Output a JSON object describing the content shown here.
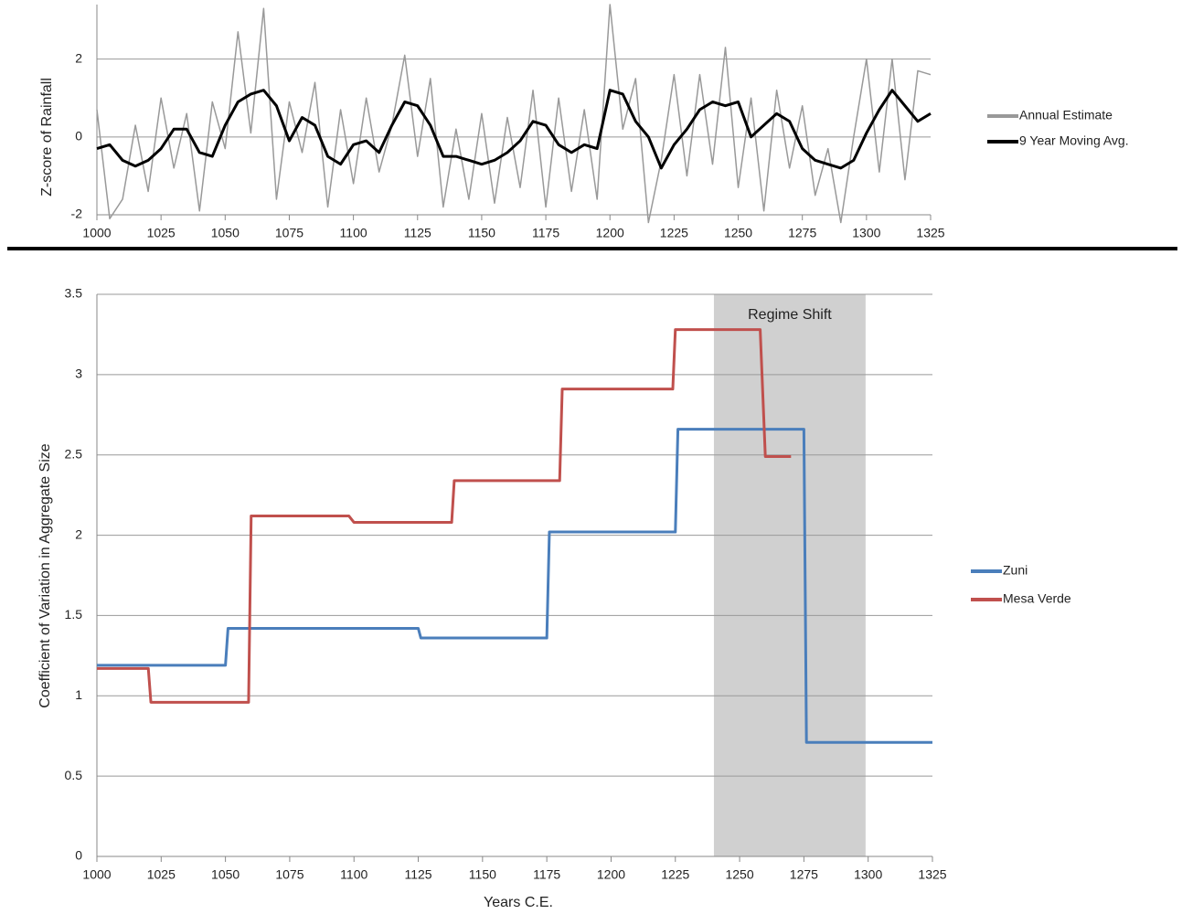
{
  "chart_data": [
    {
      "type": "line",
      "y_label": "Z-score  of Rainfall",
      "x": [
        1000,
        1005,
        1010,
        1015,
        1020,
        1025,
        1030,
        1035,
        1040,
        1045,
        1050,
        1055,
        1060,
        1065,
        1070,
        1075,
        1080,
        1085,
        1090,
        1095,
        1100,
        1105,
        1110,
        1115,
        1120,
        1125,
        1130,
        1135,
        1140,
        1145,
        1150,
        1155,
        1160,
        1165,
        1170,
        1175,
        1180,
        1185,
        1190,
        1195,
        1200,
        1205,
        1210,
        1215,
        1220,
        1225,
        1230,
        1235,
        1240,
        1245,
        1250,
        1255,
        1260,
        1265,
        1270,
        1275,
        1280,
        1285,
        1290,
        1295,
        1300,
        1305,
        1310,
        1315,
        1320,
        1325
      ],
      "series": [
        {
          "name": "Annual Estimate",
          "color": "#999999",
          "width": 1.5,
          "values": [
            0.7,
            -2.1,
            -1.6,
            0.3,
            -1.4,
            1.0,
            -0.8,
            0.6,
            -1.9,
            0.9,
            -0.3,
            2.7,
            0.1,
            3.3,
            -1.6,
            0.9,
            -0.4,
            1.4,
            -1.8,
            0.7,
            -1.2,
            1.0,
            -0.9,
            0.3,
            2.1,
            -0.5,
            1.5,
            -1.8,
            0.2,
            -1.6,
            0.6,
            -1.7,
            0.5,
            -1.3,
            1.2,
            -1.8,
            1.0,
            -1.4,
            0.7,
            -1.6,
            3.4,
            0.2,
            1.5,
            -2.2,
            -0.6,
            1.6,
            -1.0,
            1.6,
            -0.7,
            2.3,
            -1.3,
            1.0,
            -1.9,
            1.2,
            -0.8,
            0.8,
            -1.5,
            -0.3,
            -2.2,
            0.0,
            2.0,
            -0.9,
            2.0,
            -1.1,
            1.7,
            1.6
          ]
        },
        {
          "name": "9 Year Moving Avg.",
          "color": "#000000",
          "width": 3,
          "values": [
            -0.3,
            -0.2,
            -0.6,
            -0.75,
            -0.6,
            -0.3,
            0.2,
            0.2,
            -0.4,
            -0.5,
            0.3,
            0.9,
            1.1,
            1.2,
            0.8,
            -0.1,
            0.5,
            0.3,
            -0.5,
            -0.7,
            -0.2,
            -0.1,
            -0.4,
            0.3,
            0.9,
            0.8,
            0.3,
            -0.5,
            -0.5,
            -0.6,
            -0.7,
            -0.6,
            -0.4,
            -0.1,
            0.4,
            0.3,
            -0.2,
            -0.4,
            -0.2,
            -0.3,
            1.2,
            1.1,
            0.4,
            0.0,
            -0.8,
            -0.2,
            0.2,
            0.7,
            0.9,
            0.8,
            0.9,
            0.0,
            0.3,
            0.6,
            0.4,
            -0.3,
            -0.6,
            -0.7,
            -0.8,
            -0.6,
            0.1,
            0.7,
            1.2,
            0.8,
            0.4,
            0.6
          ]
        }
      ],
      "xlim": [
        1000,
        1325
      ],
      "xticks": [
        1000,
        1025,
        1050,
        1075,
        1100,
        1125,
        1150,
        1175,
        1200,
        1225,
        1250,
        1275,
        1300,
        1325
      ],
      "ylim": [
        -2,
        3.4
      ],
      "yticks": [
        -2,
        0,
        2
      ],
      "grid": true
    },
    {
      "type": "line",
      "x_label": "Years C.E.",
      "y_label": "Coefficient of Variation in Aggregate Size",
      "shaded_region": {
        "x": [
          1240,
          1299
        ],
        "label": "Regime Shift",
        "color": "#d0d0d0"
      },
      "series": [
        {
          "name": "Zuni",
          "color": "#4a7ebb",
          "width": 3,
          "x": [
            1000,
            1050,
            1051,
            1125,
            1126,
            1175,
            1176,
            1225,
            1226,
            1275,
            1276,
            1325
          ],
          "values": [
            1.19,
            1.19,
            1.42,
            1.42,
            1.36,
            1.36,
            2.02,
            2.02,
            2.66,
            2.66,
            0.71,
            0.71
          ]
        },
        {
          "name": "Mesa Verde",
          "color": "#c0504d",
          "width": 3,
          "x": [
            1000,
            1020,
            1021,
            1059,
            1060,
            1098,
            1100,
            1138,
            1139,
            1180,
            1181,
            1224,
            1225,
            1258,
            1260,
            1270
          ],
          "values": [
            1.17,
            1.17,
            0.96,
            0.96,
            2.12,
            2.12,
            2.08,
            2.08,
            2.34,
            2.34,
            2.91,
            2.91,
            3.28,
            3.28,
            2.49,
            2.49
          ]
        }
      ],
      "xlim": [
        1000,
        1325
      ],
      "xticks": [
        1000,
        1025,
        1050,
        1075,
        1100,
        1125,
        1150,
        1175,
        1200,
        1225,
        1250,
        1275,
        1300,
        1325
      ],
      "ylim": [
        0,
        3.5
      ],
      "yticks": [
        0,
        0.5,
        1,
        1.5,
        2,
        2.5,
        3,
        3.5
      ],
      "grid": true
    }
  ]
}
